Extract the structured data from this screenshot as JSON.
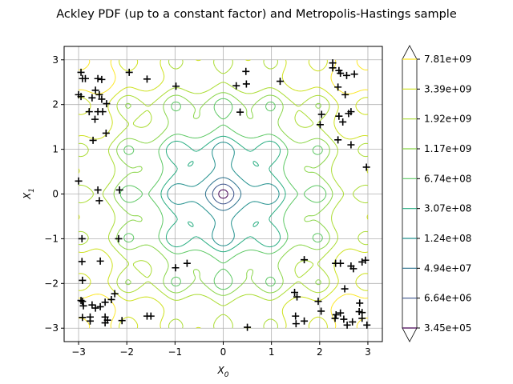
{
  "chart_data": {
    "type": "contour",
    "title": "Ackley PDF (up to a constant factor) and Metropolis-Hastings sample",
    "xlabel": "X_0",
    "ylabel": "X_1",
    "xlim": [
      -3.3,
      3.3
    ],
    "ylim": [
      -3.3,
      3.3
    ],
    "xticks": [
      -3,
      -2,
      -1,
      0,
      1,
      2,
      3
    ],
    "yticks": [
      -3,
      -2,
      -1,
      0,
      1,
      2,
      3
    ],
    "grid": true,
    "colorbar": {
      "levels": [
        "3.45e+05",
        "6.64e+06",
        "4.94e+07",
        "1.24e+08",
        "3.07e+08",
        "6.74e+08",
        "1.17e+09",
        "1.92e+09",
        "3.39e+09",
        "7.81e+09"
      ],
      "colors": [
        "#440154",
        "#3b528b",
        "#2c728e",
        "#21908d",
        "#27ad81",
        "#5cc863",
        "#89d548",
        "#aadc32",
        "#cde11d",
        "#fde725"
      ],
      "extend": "both"
    },
    "sample": {
      "marker": "+",
      "color": "#000000",
      "points": [
        [
          -2.95,
          2.72
        ],
        [
          -2.92,
          2.58
        ],
        [
          -2.86,
          2.58
        ],
        [
          -2.78,
          1.84
        ],
        [
          -2.72,
          2.15
        ],
        [
          -2.65,
          2.32
        ],
        [
          -2.6,
          2.58
        ],
        [
          -2.52,
          2.56
        ],
        [
          -2.57,
          2.22
        ],
        [
          -2.52,
          2.12
        ],
        [
          -2.42,
          2.02
        ],
        [
          -2.66,
          1.67
        ],
        [
          -2.6,
          1.84
        ],
        [
          -2.5,
          1.84
        ],
        [
          -2.43,
          1.36
        ],
        [
          -2.7,
          1.2
        ],
        [
          -3.0,
          2.22
        ],
        [
          -2.95,
          2.18
        ],
        [
          -1.95,
          2.72
        ],
        [
          -1.58,
          2.57
        ],
        [
          -0.98,
          2.41
        ],
        [
          0.27,
          2.42
        ],
        [
          0.47,
          2.74
        ],
        [
          0.48,
          2.46
        ],
        [
          0.35,
          1.83
        ],
        [
          1.18,
          2.52
        ],
        [
          2.27,
          2.93
        ],
        [
          2.27,
          2.82
        ],
        [
          2.4,
          2.76
        ],
        [
          2.43,
          2.7
        ],
        [
          2.56,
          2.65
        ],
        [
          2.72,
          2.68
        ],
        [
          2.38,
          2.39
        ],
        [
          2.53,
          2.22
        ],
        [
          2.4,
          1.74
        ],
        [
          2.48,
          1.61
        ],
        [
          2.6,
          1.8
        ],
        [
          2.65,
          1.84
        ],
        [
          2.04,
          1.78
        ],
        [
          2.01,
          1.55
        ],
        [
          2.38,
          1.21
        ],
        [
          2.65,
          1.1
        ],
        [
          2.97,
          0.6
        ],
        [
          -3.0,
          0.29
        ],
        [
          -2.6,
          0.09
        ],
        [
          -2.57,
          -0.15
        ],
        [
          -2.15,
          0.09
        ],
        [
          -2.93,
          -1.0
        ],
        [
          -2.17,
          -1.0
        ],
        [
          -2.93,
          -1.51
        ],
        [
          -2.55,
          -1.5
        ],
        [
          -2.92,
          -1.93
        ],
        [
          -0.99,
          -1.65
        ],
        [
          -0.75,
          -1.55
        ],
        [
          1.68,
          -1.47
        ],
        [
          -2.95,
          -2.38
        ],
        [
          -2.92,
          -2.4
        ],
        [
          -2.9,
          -2.5
        ],
        [
          -2.72,
          -2.48
        ],
        [
          -2.65,
          -2.55
        ],
        [
          -2.55,
          -2.52
        ],
        [
          -2.45,
          -2.42
        ],
        [
          -2.25,
          -2.23
        ],
        [
          -2.32,
          -2.36
        ],
        [
          -2.92,
          -2.76
        ],
        [
          -2.76,
          -2.75
        ],
        [
          -2.76,
          -2.84
        ],
        [
          -2.45,
          -2.75
        ],
        [
          -2.4,
          -2.82
        ],
        [
          -2.45,
          -2.88
        ],
        [
          -2.1,
          -2.83
        ],
        [
          -1.58,
          -2.73
        ],
        [
          -1.5,
          -2.73
        ],
        [
          0.5,
          -2.98
        ],
        [
          1.48,
          -2.2
        ],
        [
          1.53,
          -2.3
        ],
        [
          1.5,
          -2.73
        ],
        [
          1.51,
          -2.9
        ],
        [
          1.68,
          -2.84
        ],
        [
          1.97,
          -2.4
        ],
        [
          2.03,
          -2.62
        ],
        [
          2.33,
          -1.55
        ],
        [
          2.43,
          -1.55
        ],
        [
          2.52,
          -2.12
        ],
        [
          2.65,
          -1.61
        ],
        [
          2.7,
          -1.67
        ],
        [
          2.88,
          -1.52
        ],
        [
          2.95,
          -1.48
        ],
        [
          2.83,
          -2.44
        ],
        [
          2.82,
          -2.63
        ],
        [
          2.88,
          -2.65
        ],
        [
          2.88,
          -2.78
        ],
        [
          2.34,
          -2.7
        ],
        [
          2.32,
          -2.78
        ],
        [
          2.43,
          -2.66
        ],
        [
          2.5,
          -2.8
        ],
        [
          2.57,
          -2.93
        ],
        [
          2.68,
          -2.86
        ],
        [
          2.98,
          -2.93
        ]
      ]
    }
  }
}
